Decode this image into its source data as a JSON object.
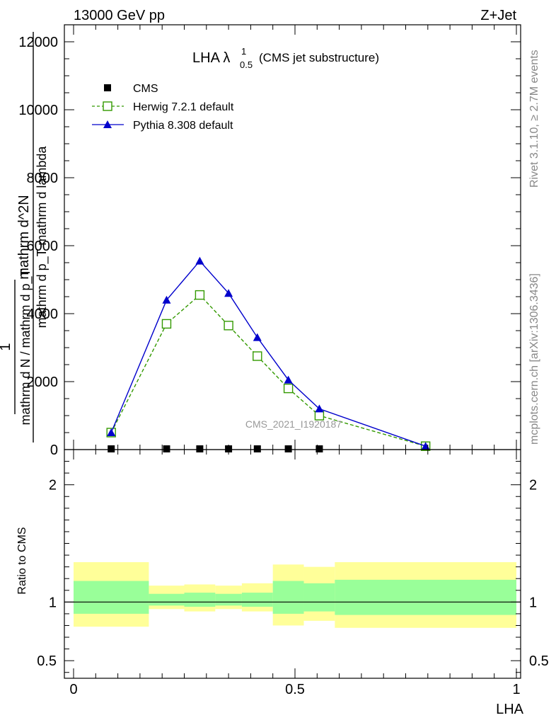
{
  "header": {
    "energy_label": "13000 GeV pp",
    "process_label": "Z+Jet"
  },
  "side_labels": {
    "rivet": "Rivet 3.1.10, ≥ 2.7M events",
    "mcplots": "mcplots.cern.ch [arXiv:1306.3436]"
  },
  "analysis_id": "CMS_2021_I1920187",
  "chart_data": [
    {
      "type": "line",
      "title_main": "LHA λ",
      "title_sup": "1",
      "title_sub": "0.5",
      "title_suffix": "(CMS jet substructure)",
      "ylabel_numerator": "1",
      "ylabel_denominator": "mathrm d N / mathrm d p_T",
      "ylabel_numerator_outer": "mathrm d^2N",
      "ylabel_denominator_outer": "mathrm d p_T mathrm d lambda",
      "ylim": [
        0,
        12500
      ],
      "yticks": [
        0,
        2000,
        4000,
        6000,
        8000,
        10000,
        12000
      ],
      "ytick_labels": [
        "0",
        "2000",
        "4000",
        "6000",
        "8000",
        "10000",
        "12000"
      ],
      "xlim": [
        0,
        1
      ],
      "legend_placement": "top-left",
      "series": [
        {
          "name": "CMS",
          "style": "marker-square",
          "color": "#000000",
          "x": [
            0.085,
            0.21,
            0.285,
            0.35,
            0.415,
            0.485,
            0.555
          ],
          "y": [
            0,
            0,
            0,
            0,
            0,
            0,
            0
          ]
        },
        {
          "name": "Herwig 7.2.1 default",
          "style": "dashed-open-square",
          "color": "#339900",
          "x": [
            0.085,
            0.21,
            0.285,
            0.35,
            0.415,
            0.485,
            0.555,
            0.795
          ],
          "y": [
            500,
            3700,
            4550,
            3650,
            2750,
            1800,
            1000,
            100
          ]
        },
        {
          "name": "Pythia 8.308 default",
          "style": "solid-triangle",
          "color": "#0000cc",
          "x": [
            0.085,
            0.21,
            0.285,
            0.35,
            0.415,
            0.485,
            0.555,
            0.795
          ],
          "y": [
            500,
            4400,
            5550,
            4600,
            3300,
            2050,
            1200,
            100
          ]
        }
      ]
    },
    {
      "type": "area",
      "ylabel": "Ratio to CMS",
      "xlabel": "LHA",
      "ylim": [
        0.35,
        2.3
      ],
      "yticks": [
        0.5,
        1,
        2
      ],
      "ytick_labels": [
        "0.5",
        "1",
        "2"
      ],
      "xlim": [
        0,
        1
      ],
      "xticks": [
        0,
        0.5,
        1
      ],
      "xtick_labels": [
        "0",
        "0.5",
        "1"
      ],
      "bins": [
        0,
        0.17,
        0.25,
        0.32,
        0.38,
        0.45,
        0.52,
        0.59,
        1.0
      ],
      "band_outer": {
        "color": "#ffff99",
        "low": [
          0.79,
          0.94,
          0.92,
          0.94,
          0.92,
          0.8,
          0.84,
          0.78
        ],
        "high": [
          1.34,
          1.14,
          1.15,
          1.14,
          1.16,
          1.32,
          1.3,
          1.34
        ]
      },
      "band_inner": {
        "color": "#99ff99",
        "low": [
          0.9,
          0.97,
          0.96,
          0.97,
          0.96,
          0.9,
          0.92,
          0.89
        ],
        "high": [
          1.18,
          1.07,
          1.08,
          1.07,
          1.08,
          1.18,
          1.16,
          1.19
        ]
      },
      "reference_line": 1
    }
  ]
}
